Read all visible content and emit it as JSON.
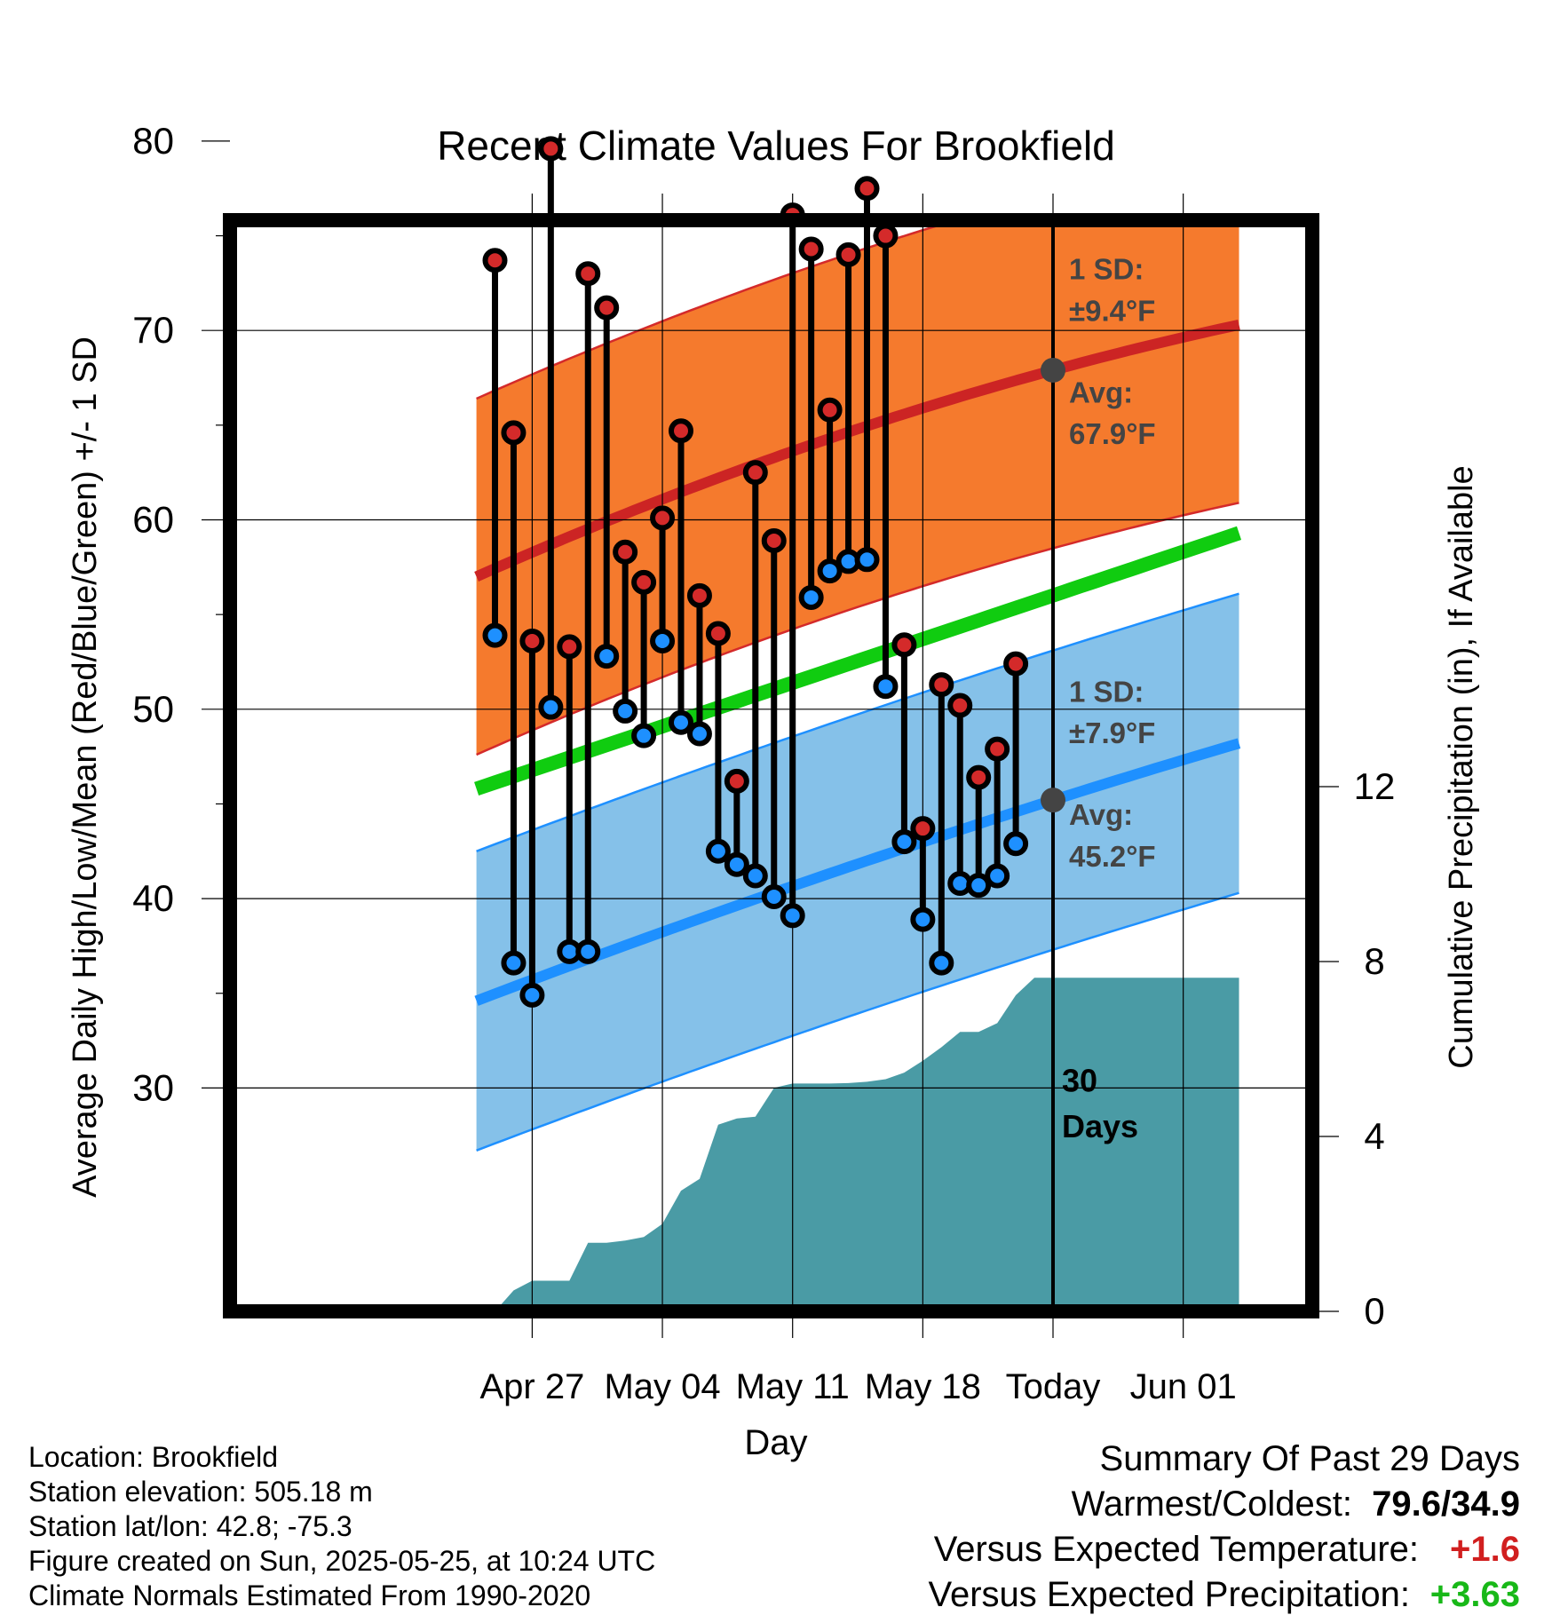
{
  "title": "Recent Climate Values For Brookfield",
  "chart_data": {
    "type": "range-bar-with-bands",
    "title": "Recent Climate Values For Brookfield",
    "xlabel": "Day",
    "ylabel_left": "Average Daily High/Low/Mean (Red/Blue/Green) +/- 1 SD",
    "ylabel_right": "Cumulative Precipitation (in), If Available",
    "x_ticks": [
      "Apr 27",
      "May 04",
      "May 11",
      "May 18",
      "Today",
      "Jun 01"
    ],
    "y_ticks_left": [
      "30",
      "40",
      "50",
      "60",
      "70",
      "80"
    ],
    "y_ticks_right": [
      "0",
      "4",
      "8",
      "12"
    ],
    "ylim_left": [
      27,
      85
    ],
    "ylim_right": [
      0,
      12.9
    ],
    "xlim_days_relative_to_today": [
      -31,
      10
    ],
    "today_marker": {
      "label_line1": "30",
      "label_line2": "Days"
    },
    "days": [
      "Apr 25",
      "Apr 26",
      "Apr 27",
      "Apr 28",
      "Apr 29",
      "Apr 30",
      "May 01",
      "May 02",
      "May 03",
      "May 04",
      "May 05",
      "May 06",
      "May 07",
      "May 08",
      "May 09",
      "May 10",
      "May 11",
      "May 12",
      "May 13",
      "May 14",
      "May 15",
      "May 16",
      "May 17",
      "May 18",
      "May 19",
      "May 20",
      "May 21",
      "May 22",
      "May 23",
      "May 24"
    ],
    "series": [
      {
        "name": "High",
        "color": "#d42a2a",
        "values": [
          73.7,
          64.6,
          53.6,
          79.6,
          53.3,
          73.0,
          71.2,
          58.3,
          56.7,
          60.1,
          64.7,
          56.0,
          54.0,
          46.2,
          62.5,
          58.9,
          76.1,
          74.3,
          65.8,
          74.0,
          77.5,
          75.0,
          53.4,
          43.7,
          51.3,
          50.2,
          46.4,
          47.9,
          52.4,
          null
        ]
      },
      {
        "name": "Low",
        "color": "#1e90ff",
        "values": [
          53.9,
          36.6,
          34.9,
          50.1,
          37.2,
          37.2,
          52.8,
          49.9,
          48.6,
          53.6,
          49.3,
          48.7,
          42.5,
          41.8,
          41.2,
          40.1,
          39.1,
          55.9,
          57.3,
          57.8,
          57.9,
          51.2,
          43.0,
          38.9,
          36.6,
          40.8,
          40.7,
          41.2,
          42.9,
          null
        ]
      }
    ],
    "normal_high": {
      "start": 57.0,
      "today": 67.9,
      "end": 70.3,
      "color": "#cc2424"
    },
    "normal_low": {
      "start": 34.6,
      "today": 45.2,
      "end": 48.2,
      "color": "#1e90ff"
    },
    "normal_mean": {
      "start": 45.8,
      "end": 59.3,
      "color": "#10cc10"
    },
    "high_sd": 9.4,
    "low_sd": 7.9,
    "band_colors": {
      "high": "#f57a2d",
      "low": "#85c1e9",
      "precip": "#4a9ba5"
    },
    "annotations": {
      "high_sd": {
        "line1": "1 SD:",
        "line2": "±9.4°F"
      },
      "high_avg": {
        "line1": "Avg:",
        "line2": "67.9°F"
      },
      "low_sd": {
        "line1": "1 SD:",
        "line2": "±7.9°F"
      },
      "low_avg": {
        "line1": "Avg:",
        "line2": "45.2°F"
      }
    },
    "precip_cumulative": [
      [
        -31,
        0
      ],
      [
        -30,
        0
      ],
      [
        -29,
        0.48
      ],
      [
        -28,
        0.7
      ],
      [
        -27,
        0.7
      ],
      [
        -26,
        0.7
      ],
      [
        -25,
        1.57
      ],
      [
        -24,
        1.57
      ],
      [
        -23,
        1.62
      ],
      [
        -22,
        1.7
      ],
      [
        -21,
        2.0
      ],
      [
        -20,
        2.76
      ],
      [
        -19,
        3.03
      ],
      [
        -18,
        4.27
      ],
      [
        -17,
        4.41
      ],
      [
        -16,
        4.45
      ],
      [
        -15,
        5.11
      ],
      [
        -14,
        5.21
      ],
      [
        -13,
        5.21
      ],
      [
        -12,
        5.21
      ],
      [
        -11,
        5.22
      ],
      [
        -10,
        5.25
      ],
      [
        -9,
        5.31
      ],
      [
        -8,
        5.46
      ],
      [
        -7,
        5.73
      ],
      [
        -6,
        6.04
      ],
      [
        -5,
        6.39
      ],
      [
        -4,
        6.39
      ],
      [
        -3,
        6.59
      ],
      [
        -2,
        7.23
      ],
      [
        -1,
        7.63
      ],
      [
        0,
        7.63
      ],
      [
        10,
        7.63
      ]
    ]
  },
  "footer": {
    "location": "Location: Brookfield",
    "elevation": "Station elevation: 505.18 m",
    "latlon": "Station lat/lon: 42.8; -75.3",
    "created": "Figure created on Sun, 2025-05-25, at 10:24 UTC",
    "normals": "Climate Normals Estimated From 1990-2020"
  },
  "summary": {
    "heading": "Summary Of Past 29 Days",
    "warmest_label": "Warmest/Coldest:",
    "warmest_value": "79.6/34.9",
    "temp_label": "Versus Expected Temperature:",
    "temp_value": "+1.6",
    "precip_label": "Versus Expected Precipitation:",
    "precip_value": "+3.63"
  }
}
